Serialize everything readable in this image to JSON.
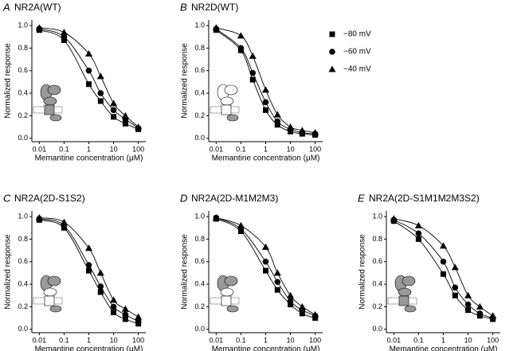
{
  "chart_data": [
    {
      "type": "line",
      "letter": "A",
      "title": "NR2A(WT)",
      "xlabel": "Memantine concentration (μM)",
      "ylabel": "Normalized response",
      "log_x": true,
      "x": [
        0.01,
        0.1,
        1,
        3,
        10,
        30,
        100
      ],
      "xlim": [
        0.005,
        200
      ],
      "xticks": [
        0.01,
        0.1,
        1,
        10,
        100
      ],
      "ylim": [
        -0.03,
        1.05
      ],
      "yticks": [
        {
          "value": 0,
          "label": "0.0"
        },
        0.2,
        0.4,
        0.6,
        0.8,
        {
          "value": 1,
          "label": "1.0"
        }
      ],
      "series": [
        {
          "marker": "square",
          "color": "#000000",
          "values": [
            0.96,
            0.87,
            0.48,
            0.33,
            0.19,
            0.13,
            0.08
          ]
        },
        {
          "marker": "circle",
          "color": "#000000",
          "values": [
            0.97,
            0.9,
            0.6,
            0.4,
            0.25,
            0.17,
            0.09
          ]
        },
        {
          "marker": "triangle",
          "color": "#000000",
          "values": [
            0.98,
            0.94,
            0.75,
            0.55,
            0.31,
            0.2,
            0.1
          ]
        }
      ]
    },
    {
      "type": "line",
      "letter": "B",
      "title": "NR2D(WT)",
      "xlabel": "Memantine concentration (μM)",
      "ylabel": "Normalized response",
      "log_x": true,
      "x": [
        0.01,
        0.1,
        0.3,
        1,
        3,
        10,
        30,
        100
      ],
      "xlim": [
        0.005,
        200
      ],
      "xticks": [
        0.01,
        0.1,
        1,
        10,
        100
      ],
      "ylim": [
        -0.03,
        1.05
      ],
      "yticks": [
        {
          "value": 0,
          "label": "0.0"
        },
        0.2,
        0.4,
        0.6,
        0.8,
        {
          "value": 1,
          "label": "1.0"
        }
      ],
      "legend": "upper right",
      "series": [
        {
          "name": "−80 mV",
          "marker": "square",
          "color": "#000000",
          "values": [
            0.96,
            0.78,
            0.52,
            0.25,
            0.12,
            0.06,
            0.04,
            0.03
          ]
        },
        {
          "name": "−60 mV",
          "marker": "circle",
          "color": "#000000",
          "values": [
            0.97,
            0.8,
            0.58,
            0.32,
            0.15,
            0.08,
            0.05,
            0.04
          ]
        },
        {
          "name": "−40 mV",
          "marker": "triangle",
          "color": "#000000",
          "values": [
            0.98,
            0.91,
            0.73,
            0.43,
            0.21,
            0.1,
            0.07,
            0.05
          ]
        }
      ]
    },
    {
      "type": "line",
      "letter": "C",
      "title": "NR2A(2D-S1S2)",
      "xlabel": "Memantine concentration (μM)",
      "ylabel": "Normalized response",
      "log_x": true,
      "x": [
        0.01,
        0.1,
        1,
        3,
        10,
        30,
        100
      ],
      "xlim": [
        0.005,
        200
      ],
      "xticks": [
        0.01,
        0.1,
        1,
        10,
        100
      ],
      "ylim": [
        -0.03,
        1.05
      ],
      "yticks": [
        {
          "value": 0,
          "label": "0.0"
        },
        0.2,
        0.4,
        0.6,
        0.8,
        {
          "value": 1,
          "label": "1.0"
        }
      ],
      "series": [
        {
          "marker": "square",
          "color": "#000000",
          "values": [
            0.97,
            0.9,
            0.52,
            0.33,
            0.15,
            0.09,
            0.05
          ]
        },
        {
          "marker": "circle",
          "color": "#000000",
          "values": [
            0.98,
            0.92,
            0.57,
            0.38,
            0.2,
            0.13,
            0.07
          ]
        },
        {
          "marker": "triangle",
          "color": "#000000",
          "values": [
            0.99,
            0.95,
            0.72,
            0.5,
            0.26,
            0.18,
            0.11
          ]
        }
      ]
    },
    {
      "type": "line",
      "letter": "D",
      "title": "NR2A(2D-M1M2M3)",
      "xlabel": "Memantine concentration (μM)",
      "ylabel": "Normalized response",
      "log_x": true,
      "x": [
        0.01,
        0.1,
        1,
        3,
        10,
        30,
        100
      ],
      "xlim": [
        0.005,
        200
      ],
      "xticks": [
        0.01,
        0.1,
        1,
        10,
        100
      ],
      "ylim": [
        -0.03,
        1.05
      ],
      "yticks": [
        {
          "value": 0,
          "label": "0.0"
        },
        0.2,
        0.4,
        0.6,
        0.8,
        {
          "value": 1,
          "label": "1.0"
        }
      ],
      "series": [
        {
          "marker": "square",
          "color": "#000000",
          "values": [
            0.98,
            0.87,
            0.52,
            0.35,
            0.22,
            0.14,
            0.1
          ]
        },
        {
          "marker": "circle",
          "color": "#000000",
          "values": [
            0.99,
            0.89,
            0.6,
            0.42,
            0.25,
            0.17,
            0.12
          ]
        },
        {
          "marker": "triangle",
          "color": "#000000",
          "values": [
            0.99,
            0.92,
            0.73,
            0.5,
            0.3,
            0.2,
            0.13
          ]
        }
      ]
    },
    {
      "type": "line",
      "letter": "E",
      "title": "NR2A(2D-S1M1M2M3S2)",
      "xlabel": "Memantine concentration (μM)",
      "ylabel": "Normalized response",
      "log_x": true,
      "x": [
        0.01,
        0.1,
        1,
        3,
        10,
        30,
        100
      ],
      "xlim": [
        0.005,
        200
      ],
      "xticks": [
        0.01,
        0.1,
        1,
        10,
        100
      ],
      "ylim": [
        -0.03,
        1.05
      ],
      "yticks": [
        {
          "value": 0,
          "label": "0.0"
        },
        0.2,
        0.4,
        0.6,
        0.8,
        {
          "value": 1,
          "label": "1.0"
        }
      ],
      "series": [
        {
          "marker": "square",
          "color": "#000000",
          "values": [
            0.96,
            0.8,
            0.49,
            0.3,
            0.17,
            0.12,
            0.09
          ]
        },
        {
          "marker": "circle",
          "color": "#000000",
          "values": [
            0.97,
            0.85,
            0.6,
            0.37,
            0.22,
            0.14,
            0.1
          ]
        },
        {
          "marker": "triangle",
          "color": "#000000",
          "values": [
            0.98,
            0.92,
            0.74,
            0.55,
            0.3,
            0.2,
            0.12
          ]
        }
      ]
    }
  ]
}
